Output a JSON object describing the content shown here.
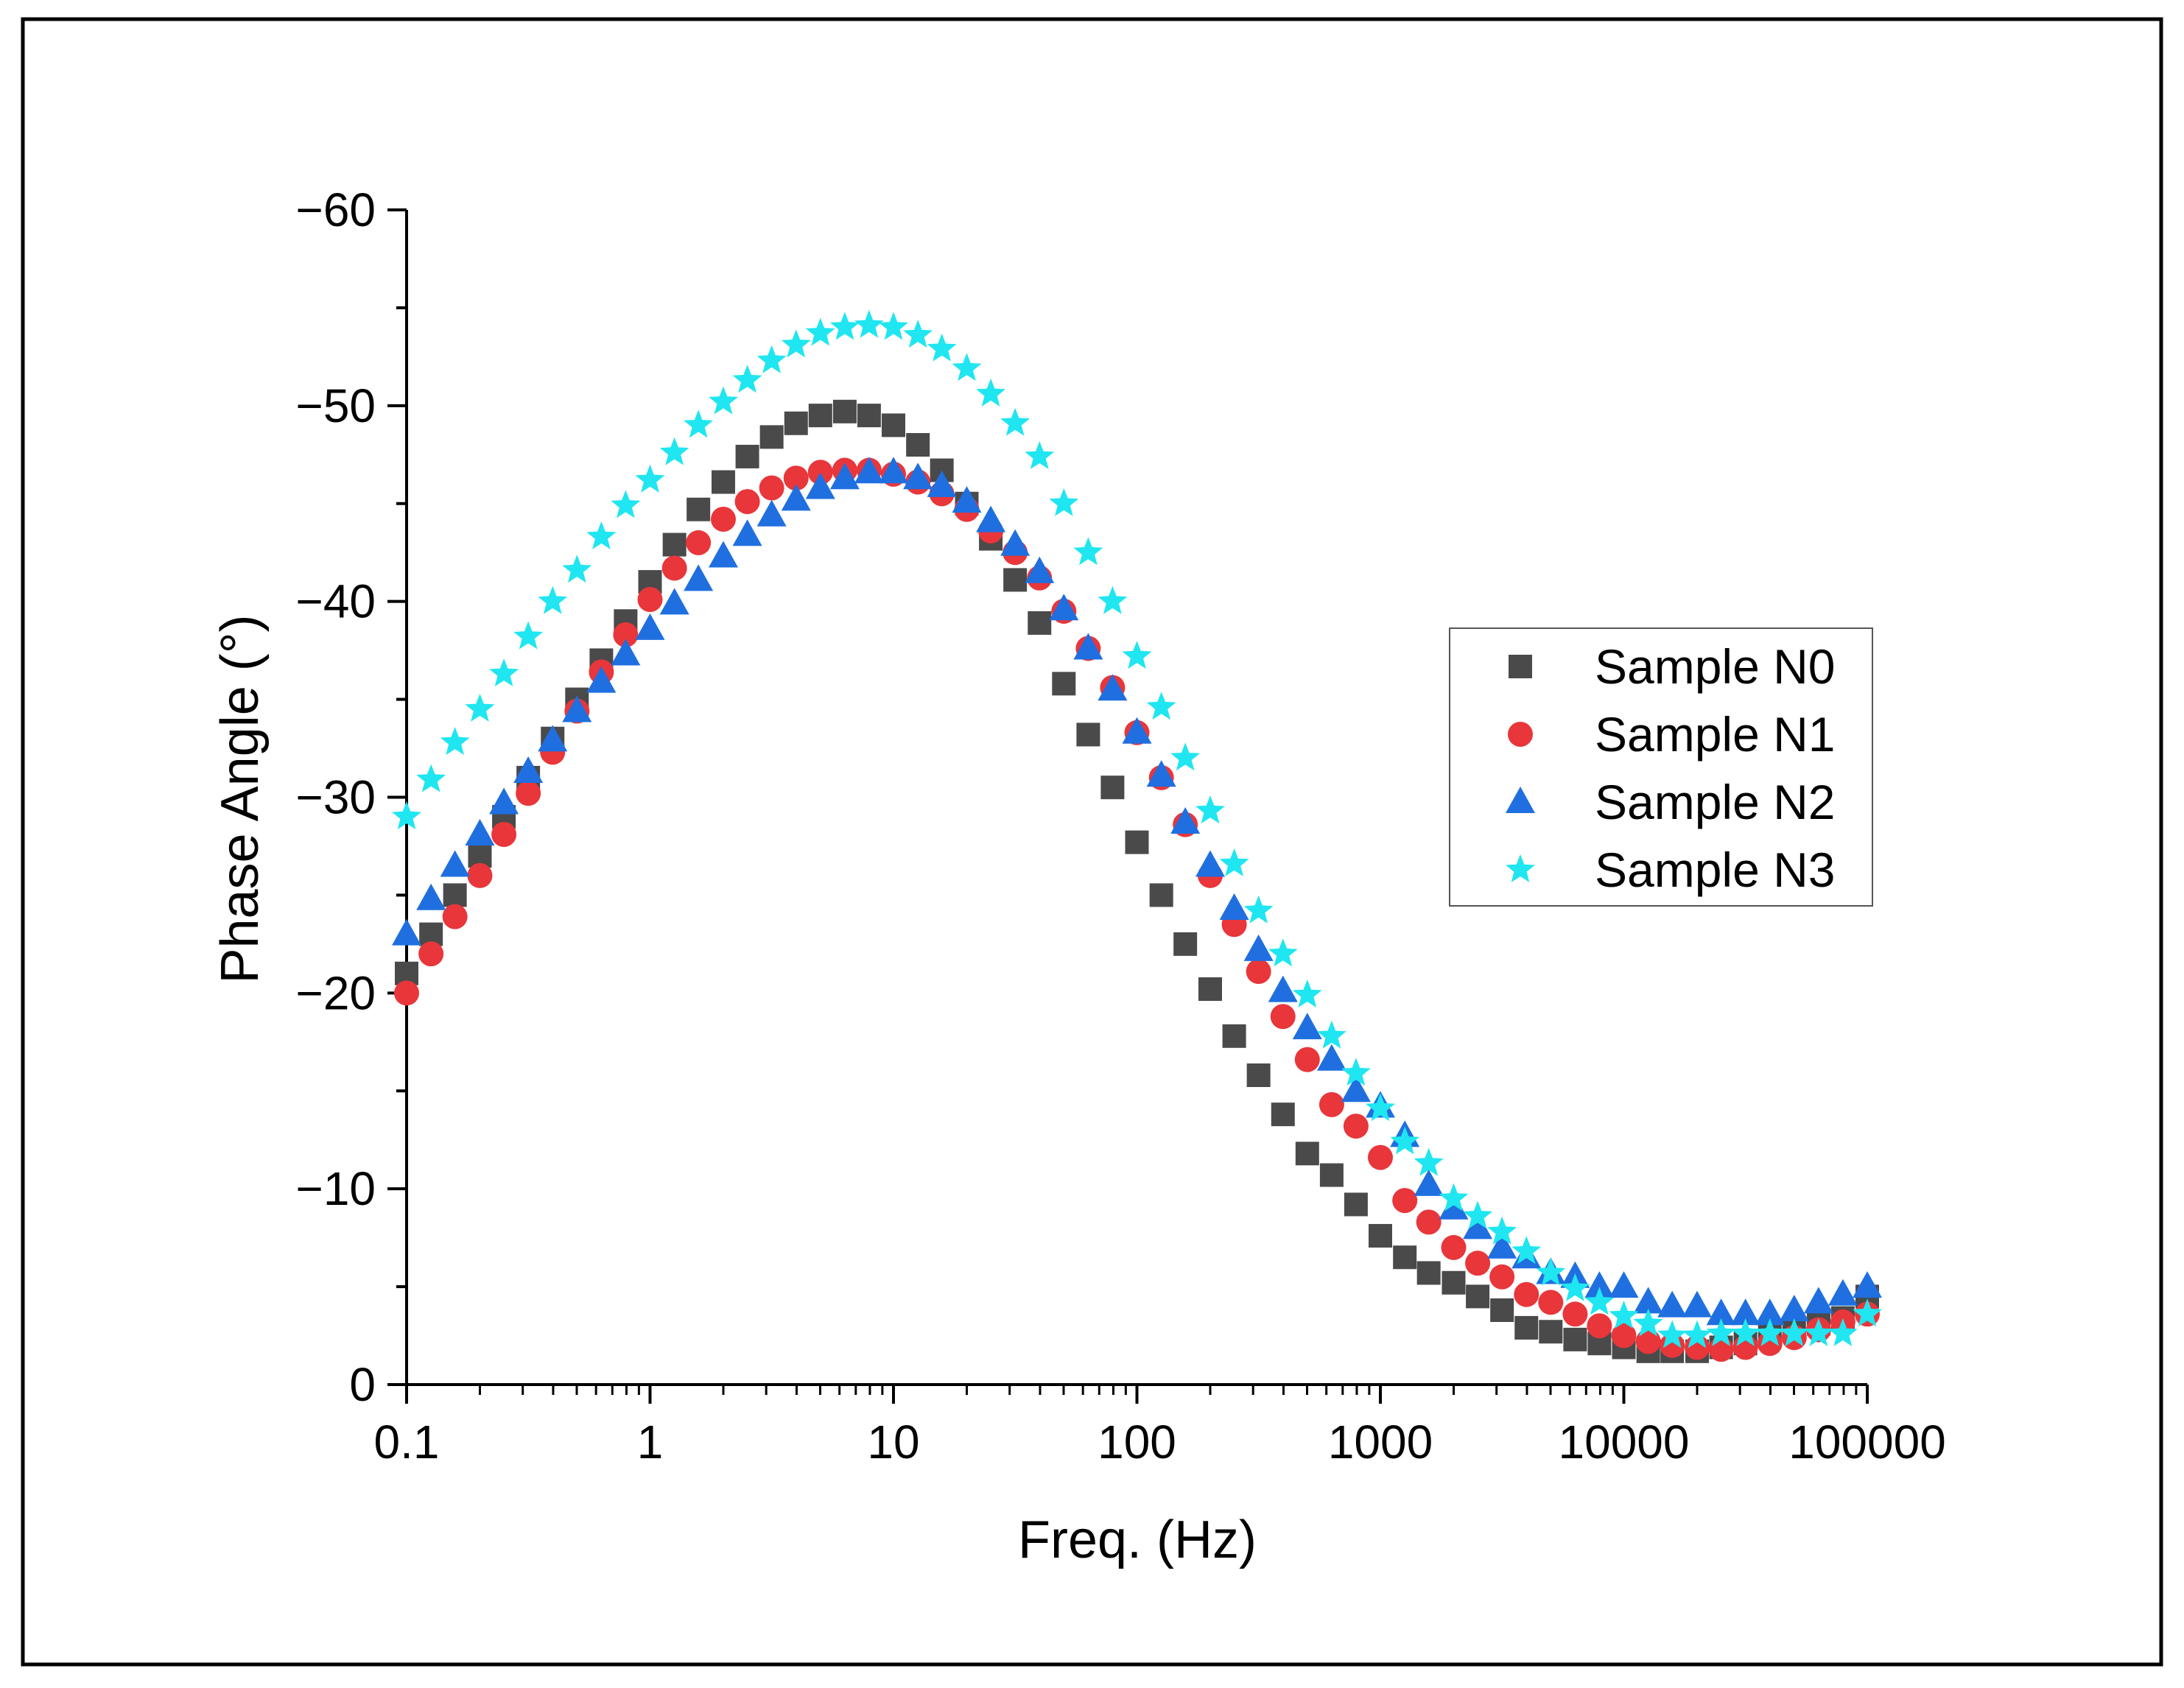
{
  "chart_data": {
    "type": "scatter",
    "title": "",
    "xlabel": "Freq. (Hz)",
    "ylabel": "Phase Angle (°)",
    "xscale": "log",
    "xlim": [
      0.1,
      100000
    ],
    "ylim": [
      0,
      -60
    ],
    "y_inverted": true,
    "x_ticks": [
      0.1,
      1,
      10,
      100,
      1000,
      10000,
      100000
    ],
    "x_tick_labels": [
      "0.1",
      "1",
      "10",
      "100",
      "1000",
      "10000",
      "100000"
    ],
    "y_ticks": [
      -60,
      -50,
      -40,
      -30,
      -20,
      -10,
      0
    ],
    "y_tick_labels": [
      "−60",
      "−50",
      "−40",
      "−30",
      "−20",
      "−10",
      "0"
    ],
    "grid": false,
    "legend_position": "right",
    "series": [
      {
        "name": "Sample N0",
        "marker": "square",
        "color": "#4a4a4a",
        "x": [
          0.1,
          0.126,
          0.158,
          0.2,
          0.251,
          0.316,
          0.398,
          0.501,
          0.631,
          0.794,
          1,
          1.26,
          1.58,
          2,
          2.51,
          3.16,
          3.98,
          5.01,
          6.31,
          7.94,
          10,
          12.6,
          15.8,
          20,
          25.1,
          31.6,
          39.8,
          50.1,
          63.1,
          79.4,
          100,
          126,
          158,
          200,
          251,
          316,
          398,
          501,
          631,
          794,
          1000,
          1260,
          1580,
          2000,
          2510,
          3160,
          3980,
          5010,
          6310,
          7940,
          10000,
          12600,
          15800,
          20000,
          25100,
          31600,
          39800,
          50100,
          63100,
          79400,
          100000
        ],
        "y": [
          -21,
          -23,
          -25,
          -27,
          -29,
          -31,
          -33,
          -35,
          -37,
          -39,
          -41,
          -42.9,
          -44.7,
          -46.1,
          -47.4,
          -48.4,
          -49.1,
          -49.5,
          -49.7,
          -49.5,
          -49,
          -48,
          -46.7,
          -45,
          -43.2,
          -41.1,
          -38.9,
          -35.8,
          -33.2,
          -30.5,
          -27.7,
          -25,
          -22.5,
          -20.2,
          -17.8,
          -15.8,
          -13.8,
          -11.8,
          -10.7,
          -9.2,
          -7.6,
          -6.5,
          -5.7,
          -5.2,
          -4.5,
          -3.8,
          -2.9,
          -2.7,
          -2.3,
          -2.1,
          -1.9,
          -1.7,
          -1.7,
          -1.7,
          -1.9,
          -2.1,
          -2.5,
          -2.8,
          -3.1,
          -3.4,
          -4.5
        ]
      },
      {
        "name": "Sample N1",
        "marker": "circle",
        "color": "#e8363b",
        "x": [
          0.1,
          0.126,
          0.158,
          0.2,
          0.251,
          0.316,
          0.398,
          0.501,
          0.631,
          0.794,
          1,
          1.26,
          1.58,
          2,
          2.51,
          3.16,
          3.98,
          5.01,
          6.31,
          7.94,
          10,
          12.6,
          15.8,
          20,
          25.1,
          31.6,
          39.8,
          50.1,
          63.1,
          79.4,
          100,
          126,
          158,
          200,
          251,
          316,
          398,
          501,
          631,
          794,
          1000,
          1260,
          1580,
          2000,
          2510,
          3160,
          3980,
          5010,
          6310,
          7940,
          10000,
          12600,
          15800,
          20000,
          25100,
          31600,
          39800,
          50100,
          63100,
          79400,
          100000
        ],
        "y": [
          -20,
          -22,
          -23.9,
          -26,
          -28.1,
          -30.2,
          -32.3,
          -34.4,
          -36.4,
          -38.3,
          -40.1,
          -41.7,
          -43,
          -44.2,
          -45.1,
          -45.8,
          -46.3,
          -46.6,
          -46.7,
          -46.7,
          -46.5,
          -46.1,
          -45.5,
          -44.7,
          -43.6,
          -42.5,
          -41.2,
          -39.5,
          -37.6,
          -35.6,
          -33.3,
          -31,
          -28.6,
          -26,
          -23.5,
          -21.1,
          -18.8,
          -16.6,
          -14.3,
          -13.2,
          -11.6,
          -9.4,
          -8.3,
          -7,
          -6.2,
          -5.5,
          -4.6,
          -4.2,
          -3.6,
          -3,
          -2.5,
          -2.2,
          -2,
          -1.9,
          -1.8,
          -1.9,
          -2.1,
          -2.4,
          -2.8,
          -3.2,
          -3.6
        ]
      },
      {
        "name": "Sample N2",
        "marker": "triangle",
        "color": "#1f6fe0",
        "x": [
          0.1,
          0.126,
          0.158,
          0.2,
          0.251,
          0.316,
          0.398,
          0.501,
          0.631,
          0.794,
          1,
          1.26,
          1.58,
          2,
          2.51,
          3.16,
          3.98,
          5.01,
          6.31,
          7.94,
          10,
          12.6,
          15.8,
          20,
          25.1,
          31.6,
          39.8,
          50.1,
          63.1,
          79.4,
          100,
          126,
          158,
          200,
          251,
          316,
          398,
          501,
          631,
          794,
          1000,
          1260,
          1580,
          2000,
          2510,
          3160,
          3980,
          5010,
          6310,
          7940,
          10000,
          12600,
          15800,
          20000,
          25100,
          31600,
          39800,
          50100,
          63100,
          79400,
          100000
        ],
        "y": [
          -23,
          -24.8,
          -26.5,
          -28.1,
          -29.7,
          -31.3,
          -32.9,
          -34.4,
          -35.9,
          -37.3,
          -38.6,
          -39.9,
          -41.1,
          -42.3,
          -43.4,
          -44.4,
          -45.2,
          -45.8,
          -46.3,
          -46.6,
          -46.6,
          -46.3,
          -45.9,
          -45.1,
          -44.1,
          -42.9,
          -41.5,
          -39.6,
          -37.6,
          -35.5,
          -33.3,
          -31.1,
          -28.7,
          -26.5,
          -24.3,
          -22.2,
          -20.1,
          -18.2,
          -16.6,
          -15,
          -14.2,
          -12.7,
          -10.2,
          -9,
          -8,
          -7,
          -6.5,
          -5.7,
          -5.5,
          -5,
          -5,
          -4.2,
          -4,
          -4,
          -3.6,
          -3.6,
          -3.6,
          -3.8,
          -4.2,
          -4.6,
          -5
        ]
      },
      {
        "name": "Sample N3",
        "marker": "star",
        "color": "#1fe6f0",
        "x": [
          0.1,
          0.126,
          0.158,
          0.2,
          0.251,
          0.316,
          0.398,
          0.501,
          0.631,
          0.794,
          1,
          1.26,
          1.58,
          2,
          2.51,
          3.16,
          3.98,
          5.01,
          6.31,
          7.94,
          10,
          12.6,
          15.8,
          20,
          25.1,
          31.6,
          39.8,
          50.1,
          63.1,
          79.4,
          100,
          126,
          158,
          200,
          251,
          316,
          398,
          501,
          631,
          794,
          1000,
          1260,
          1580,
          2000,
          2510,
          3160,
          3980,
          5010,
          6310,
          7940,
          10000,
          12600,
          15800,
          20000,
          25100,
          31600,
          39800,
          50100,
          63100,
          79400,
          100000
        ],
        "y": [
          -29,
          -30.9,
          -32.8,
          -34.5,
          -36.3,
          -38.2,
          -40,
          -41.6,
          -43.3,
          -44.9,
          -46.2,
          -47.6,
          -49,
          -50.2,
          -51.3,
          -52.3,
          -53.1,
          -53.7,
          -54,
          -54.1,
          -54,
          -53.6,
          -52.9,
          -51.9,
          -50.6,
          -49.1,
          -47.4,
          -45,
          -42.5,
          -40,
          -37.2,
          -34.6,
          -32,
          -29.3,
          -26.6,
          -24.2,
          -22,
          -19.9,
          -17.8,
          -15.9,
          -14.1,
          -12.4,
          -11.3,
          -9.5,
          -8.6,
          -7.8,
          -6.8,
          -5.7,
          -4.9,
          -4.2,
          -3.5,
          -3.1,
          -2.5,
          -2.5,
          -2.6,
          -2.6,
          -2.6,
          -2.6,
          -2.6,
          -2.6,
          -3.6
        ]
      }
    ]
  }
}
